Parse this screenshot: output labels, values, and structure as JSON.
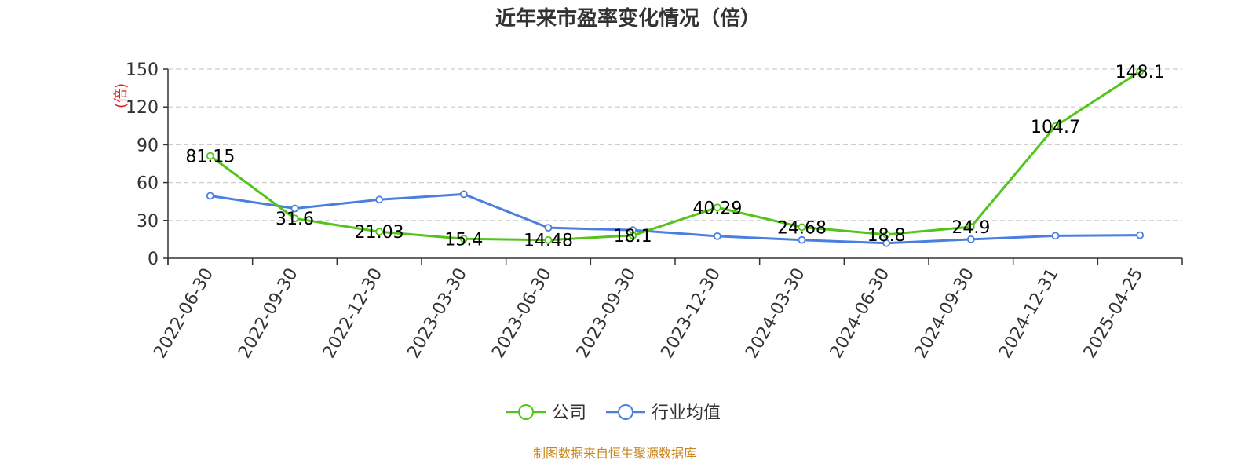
{
  "chart_data": {
    "type": "line",
    "title": "近年来市盈率变化情况（倍）",
    "ylabel": "(倍)",
    "ylim": [
      0,
      150
    ],
    "yticks": [
      0,
      30,
      60,
      90,
      120,
      150
    ],
    "categories": [
      "2022-06-30",
      "2022-09-30",
      "2022-12-30",
      "2023-03-30",
      "2023-06-30",
      "2023-09-30",
      "2023-12-30",
      "2024-03-30",
      "2024-06-30",
      "2024-09-30",
      "2024-12-31",
      "2025-04-25"
    ],
    "series": [
      {
        "name": "公司",
        "color": "#52c41a",
        "values": [
          81.15,
          31.6,
          21.03,
          15.4,
          14.48,
          18.1,
          40.29,
          24.68,
          18.8,
          24.9,
          104.7,
          148.1
        ],
        "labels": [
          "81.15",
          "31.6",
          "21.03",
          "15.4",
          "14.48",
          "18.1",
          "40.29",
          "24.68",
          "18.8",
          "24.9",
          "104.7",
          "148.1"
        ]
      },
      {
        "name": "行业均值",
        "color": "#4a7fe0",
        "values": [
          49.5,
          39.5,
          46.5,
          50.8,
          24.2,
          22.3,
          17.5,
          14.5,
          12.0,
          15.0,
          17.8,
          18.3
        ]
      }
    ],
    "grid": true,
    "legend": "bottom-center",
    "footer": "制图数据来自恒生聚源数据库"
  }
}
